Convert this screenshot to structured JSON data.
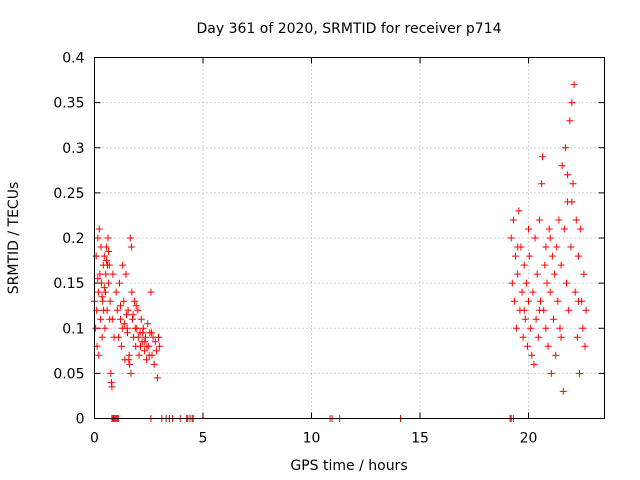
{
  "chart_data": {
    "type": "scatter",
    "title": "Day 361 of 2020, SRMTID for receiver p714",
    "xlabel": "GPS time / hours",
    "ylabel": "SRMTID / TECUs",
    "xlim": [
      0,
      23.5
    ],
    "ylim": [
      0,
      0.4
    ],
    "xticks": [
      0,
      5,
      10,
      15,
      20
    ],
    "yticks": [
      0,
      0.05,
      0.1,
      0.15,
      0.2,
      0.25,
      0.3,
      0.35,
      0.4
    ],
    "xtick_labels": [
      "0",
      "5",
      "10",
      "15",
      "20"
    ],
    "ytick_labels": [
      "0",
      "0.05",
      "0.1",
      "0.15",
      "0.2",
      "0.25",
      "0.3",
      "0.35",
      "0.4"
    ],
    "grid": true,
    "marker": "+",
    "color": "#ff0000",
    "series": [
      {
        "name": "SRMTID",
        "points": [
          [
            0.0,
            0.13
          ],
          [
            0.05,
            0.1
          ],
          [
            0.08,
            0.18
          ],
          [
            0.1,
            0.12
          ],
          [
            0.12,
            0.08
          ],
          [
            0.15,
            0.2
          ],
          [
            0.18,
            0.14
          ],
          [
            0.2,
            0.07
          ],
          [
            0.22,
            0.21
          ],
          [
            0.25,
            0.16
          ],
          [
            0.28,
            0.11
          ],
          [
            0.3,
            0.19
          ],
          [
            0.32,
            0.15
          ],
          [
            0.35,
            0.09
          ],
          [
            0.38,
            0.13
          ],
          [
            0.4,
            0.17
          ],
          [
            0.42,
            0.12
          ],
          [
            0.45,
            0.18
          ],
          [
            0.48,
            0.1
          ],
          [
            0.5,
            0.14
          ],
          [
            0.52,
            0.16
          ],
          [
            0.55,
            0.19
          ],
          [
            0.58,
            0.12
          ],
          [
            0.6,
            0.17
          ],
          [
            0.62,
            0.2
          ],
          [
            0.65,
            0.15
          ],
          [
            0.68,
            0.17
          ],
          [
            0.7,
            0.11
          ],
          [
            0.72,
            0.13
          ],
          [
            0.75,
            0.05
          ],
          [
            0.78,
            0.04
          ],
          [
            0.8,
            0.035
          ],
          [
            0.82,
            0.11
          ],
          [
            0.85,
            0.16
          ],
          [
            0.9,
            0.09
          ],
          [
            1.0,
            0.14
          ],
          [
            1.05,
            0.12
          ],
          [
            1.1,
            0.09
          ],
          [
            1.15,
            0.15
          ],
          [
            1.2,
            0.11
          ],
          [
            1.25,
            0.08
          ],
          [
            1.3,
            0.17
          ],
          [
            1.35,
            0.13
          ],
          [
            1.4,
            0.065
          ],
          [
            1.45,
            0.16
          ],
          [
            1.5,
            0.1
          ],
          [
            1.55,
            0.12
          ],
          [
            1.6,
            0.07
          ],
          [
            1.65,
            0.2
          ],
          [
            1.7,
            0.19
          ],
          [
            1.72,
            0.14
          ],
          [
            1.75,
            0.11
          ],
          [
            1.8,
            0.09
          ],
          [
            1.85,
            0.13
          ],
          [
            1.9,
            0.08
          ],
          [
            1.95,
            0.1
          ],
          [
            2.0,
            0.12
          ],
          [
            2.05,
            0.07
          ],
          [
            2.1,
            0.095
          ],
          [
            2.15,
            0.11
          ],
          [
            2.2,
            0.085
          ],
          [
            2.25,
            0.1
          ],
          [
            2.3,
            0.075
          ],
          [
            2.35,
            0.09
          ],
          [
            2.4,
            0.065
          ],
          [
            2.45,
            0.105
          ],
          [
            2.5,
            0.08
          ],
          [
            2.55,
            0.095
          ],
          [
            2.6,
            0.14
          ],
          [
            2.65,
            0.07
          ],
          [
            2.7,
            0.09
          ],
          [
            2.75,
            0.06
          ],
          [
            2.8,
            0.085
          ],
          [
            2.85,
            0.075
          ],
          [
            2.9,
            0.045
          ],
          [
            2.95,
            0.09
          ],
          [
            3.0,
            0.08
          ],
          [
            1.58,
            0.065
          ],
          [
            1.62,
            0.06
          ],
          [
            1.68,
            0.05
          ],
          [
            1.2,
            0.125
          ],
          [
            1.28,
            0.1
          ],
          [
            1.38,
            0.105
          ],
          [
            1.48,
            0.115
          ],
          [
            1.52,
            0.095
          ],
          [
            1.78,
            0.115
          ],
          [
            1.88,
            0.1
          ],
          [
            1.92,
            0.125
          ],
          [
            2.02,
            0.09
          ],
          [
            2.12,
            0.08
          ],
          [
            2.22,
            0.095
          ],
          [
            2.32,
            0.085
          ],
          [
            2.42,
            0.08
          ],
          [
            2.52,
            0.07
          ],
          [
            2.62,
            0.095
          ],
          [
            0.35,
            0.135
          ],
          [
            0.45,
            0.145
          ],
          [
            0.55,
            0.175
          ],
          [
            0.65,
            0.185
          ],
          [
            0.15,
            0.155
          ],
          [
            19.2,
            0.2
          ],
          [
            19.25,
            0.15
          ],
          [
            19.3,
            0.22
          ],
          [
            19.35,
            0.13
          ],
          [
            19.4,
            0.18
          ],
          [
            19.45,
            0.1
          ],
          [
            19.5,
            0.16
          ],
          [
            19.55,
            0.23
          ],
          [
            19.6,
            0.12
          ],
          [
            19.65,
            0.19
          ],
          [
            19.7,
            0.14
          ],
          [
            19.75,
            0.09
          ],
          [
            19.8,
            0.17
          ],
          [
            19.85,
            0.11
          ],
          [
            19.9,
            0.15
          ],
          [
            19.95,
            0.08
          ],
          [
            20.0,
            0.13
          ],
          [
            20.05,
            0.18
          ],
          [
            20.1,
            0.1
          ],
          [
            20.15,
            0.07
          ],
          [
            20.2,
            0.14
          ],
          [
            20.25,
            0.06
          ],
          [
            20.3,
            0.2
          ],
          [
            20.35,
            0.11
          ],
          [
            20.4,
            0.16
          ],
          [
            20.45,
            0.09
          ],
          [
            20.5,
            0.22
          ],
          [
            20.55,
            0.13
          ],
          [
            20.6,
            0.26
          ],
          [
            20.65,
            0.29
          ],
          [
            20.7,
            0.12
          ],
          [
            20.75,
            0.17
          ],
          [
            20.8,
            0.1
          ],
          [
            20.85,
            0.15
          ],
          [
            20.9,
            0.08
          ],
          [
            20.95,
            0.21
          ],
          [
            21.0,
            0.14
          ],
          [
            21.05,
            0.05
          ],
          [
            21.1,
            0.18
          ],
          [
            21.15,
            0.11
          ],
          [
            21.2,
            0.16
          ],
          [
            21.25,
            0.07
          ],
          [
            21.3,
            0.19
          ],
          [
            21.35,
            0.13
          ],
          [
            21.4,
            0.22
          ],
          [
            21.45,
            0.1
          ],
          [
            21.5,
            0.17
          ],
          [
            21.55,
            0.28
          ],
          [
            21.6,
            0.03
          ],
          [
            21.65,
            0.21
          ],
          [
            21.7,
            0.3
          ],
          [
            21.75,
            0.15
          ],
          [
            21.8,
            0.24
          ],
          [
            21.85,
            0.12
          ],
          [
            21.9,
            0.33
          ],
          [
            21.95,
            0.19
          ],
          [
            22.0,
            0.35
          ],
          [
            22.05,
            0.26
          ],
          [
            22.1,
            0.37
          ],
          [
            22.15,
            0.14
          ],
          [
            22.2,
            0.22
          ],
          [
            22.25,
            0.09
          ],
          [
            22.3,
            0.18
          ],
          [
            22.35,
            0.05
          ],
          [
            22.4,
            0.21
          ],
          [
            22.45,
            0.13
          ],
          [
            22.5,
            0.1
          ],
          [
            22.55,
            0.16
          ],
          [
            22.6,
            0.08
          ],
          [
            22.65,
            0.12
          ],
          [
            19.5,
            0.19
          ],
          [
            20.0,
            0.21
          ],
          [
            20.5,
            0.12
          ],
          [
            21.0,
            0.2
          ],
          [
            21.5,
            0.09
          ],
          [
            22.0,
            0.24
          ],
          [
            22.3,
            0.13
          ],
          [
            19.8,
            0.12
          ],
          [
            20.8,
            0.19
          ],
          [
            21.8,
            0.27
          ]
        ],
        "baseline_x": [
          0.8,
          0.85,
          0.9,
          0.95,
          1.0,
          1.05,
          1.1,
          2.6,
          3.1,
          3.3,
          3.45,
          3.6,
          3.95,
          4.25,
          4.3,
          4.4,
          4.5,
          4.55,
          10.85,
          10.95,
          11.3,
          14.1,
          19.15,
          19.2,
          19.3
        ]
      }
    ]
  }
}
